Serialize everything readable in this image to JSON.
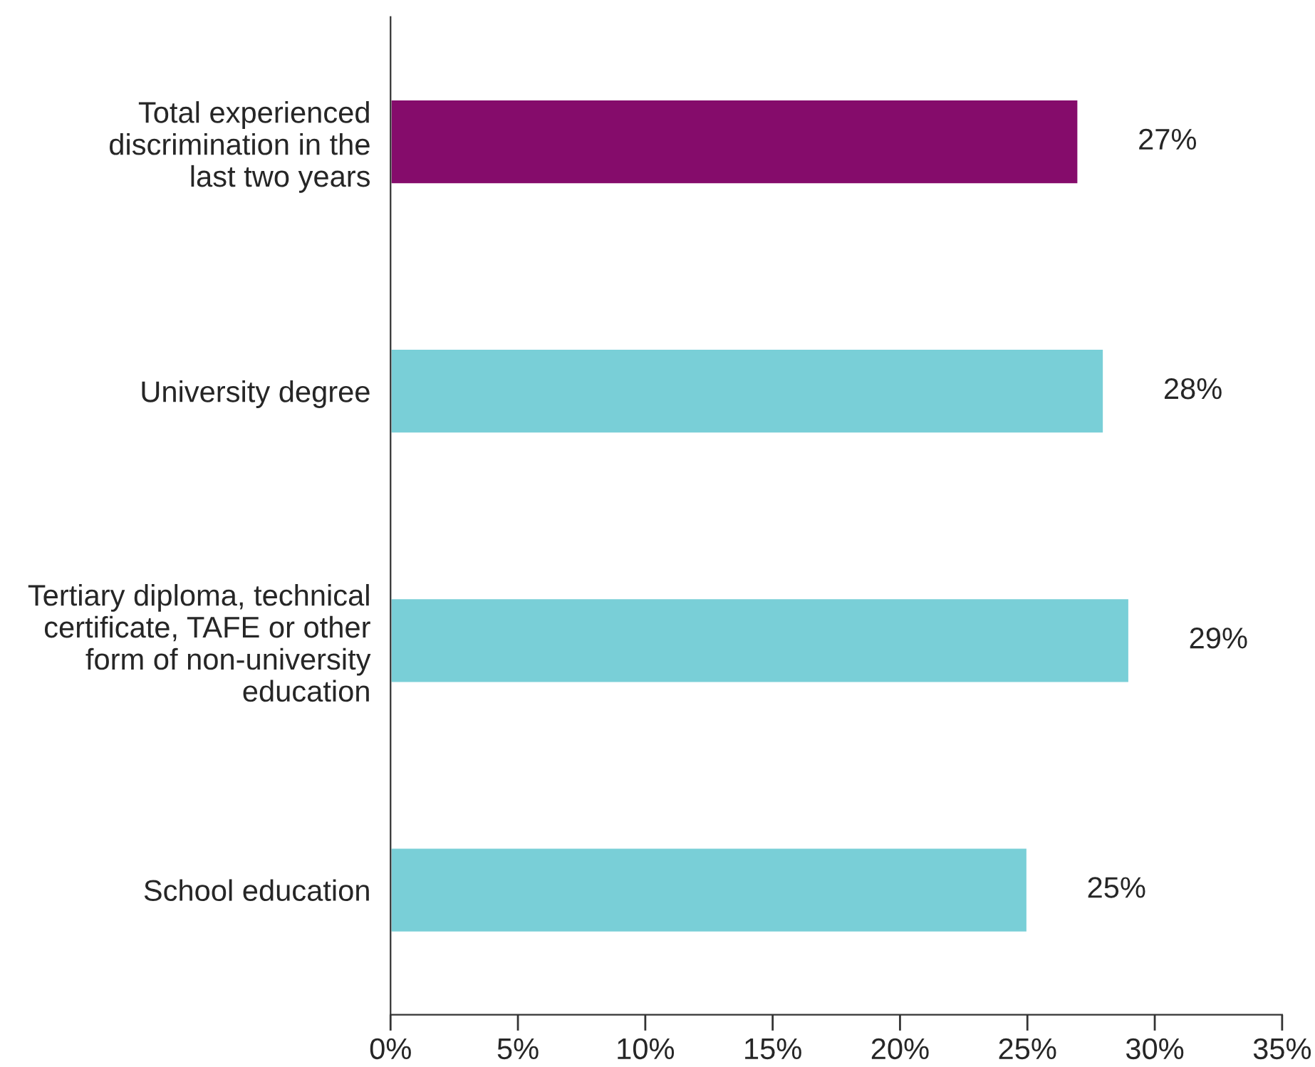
{
  "chart_data": {
    "type": "bar",
    "orientation": "horizontal",
    "categories": [
      "Total experienced\ndiscrimination in the\nlast two years",
      "University degree",
      "Tertiary diploma, technical\ncertificate, TAFE or other\nform of non-university\neducation",
      "School education"
    ],
    "values": [
      27,
      28,
      29,
      25
    ],
    "colors": [
      "#850c6b",
      "#79cfd7",
      "#79cfd7",
      "#79cfd7"
    ],
    "value_labels": [
      "27%",
      "28%",
      "29%",
      "25%"
    ],
    "xlim": [
      0,
      35
    ],
    "xticks": [
      {
        "value": 0,
        "label": "0%"
      },
      {
        "value": 5,
        "label": "5%"
      },
      {
        "value": 10,
        "label": "10%"
      },
      {
        "value": 15,
        "label": "15%"
      },
      {
        "value": 20,
        "label": "20%"
      },
      {
        "value": 25,
        "label": "25%"
      },
      {
        "value": 30,
        "label": "30%"
      },
      {
        "value": 35,
        "label": "35%"
      }
    ],
    "grid": false,
    "legend": false
  }
}
